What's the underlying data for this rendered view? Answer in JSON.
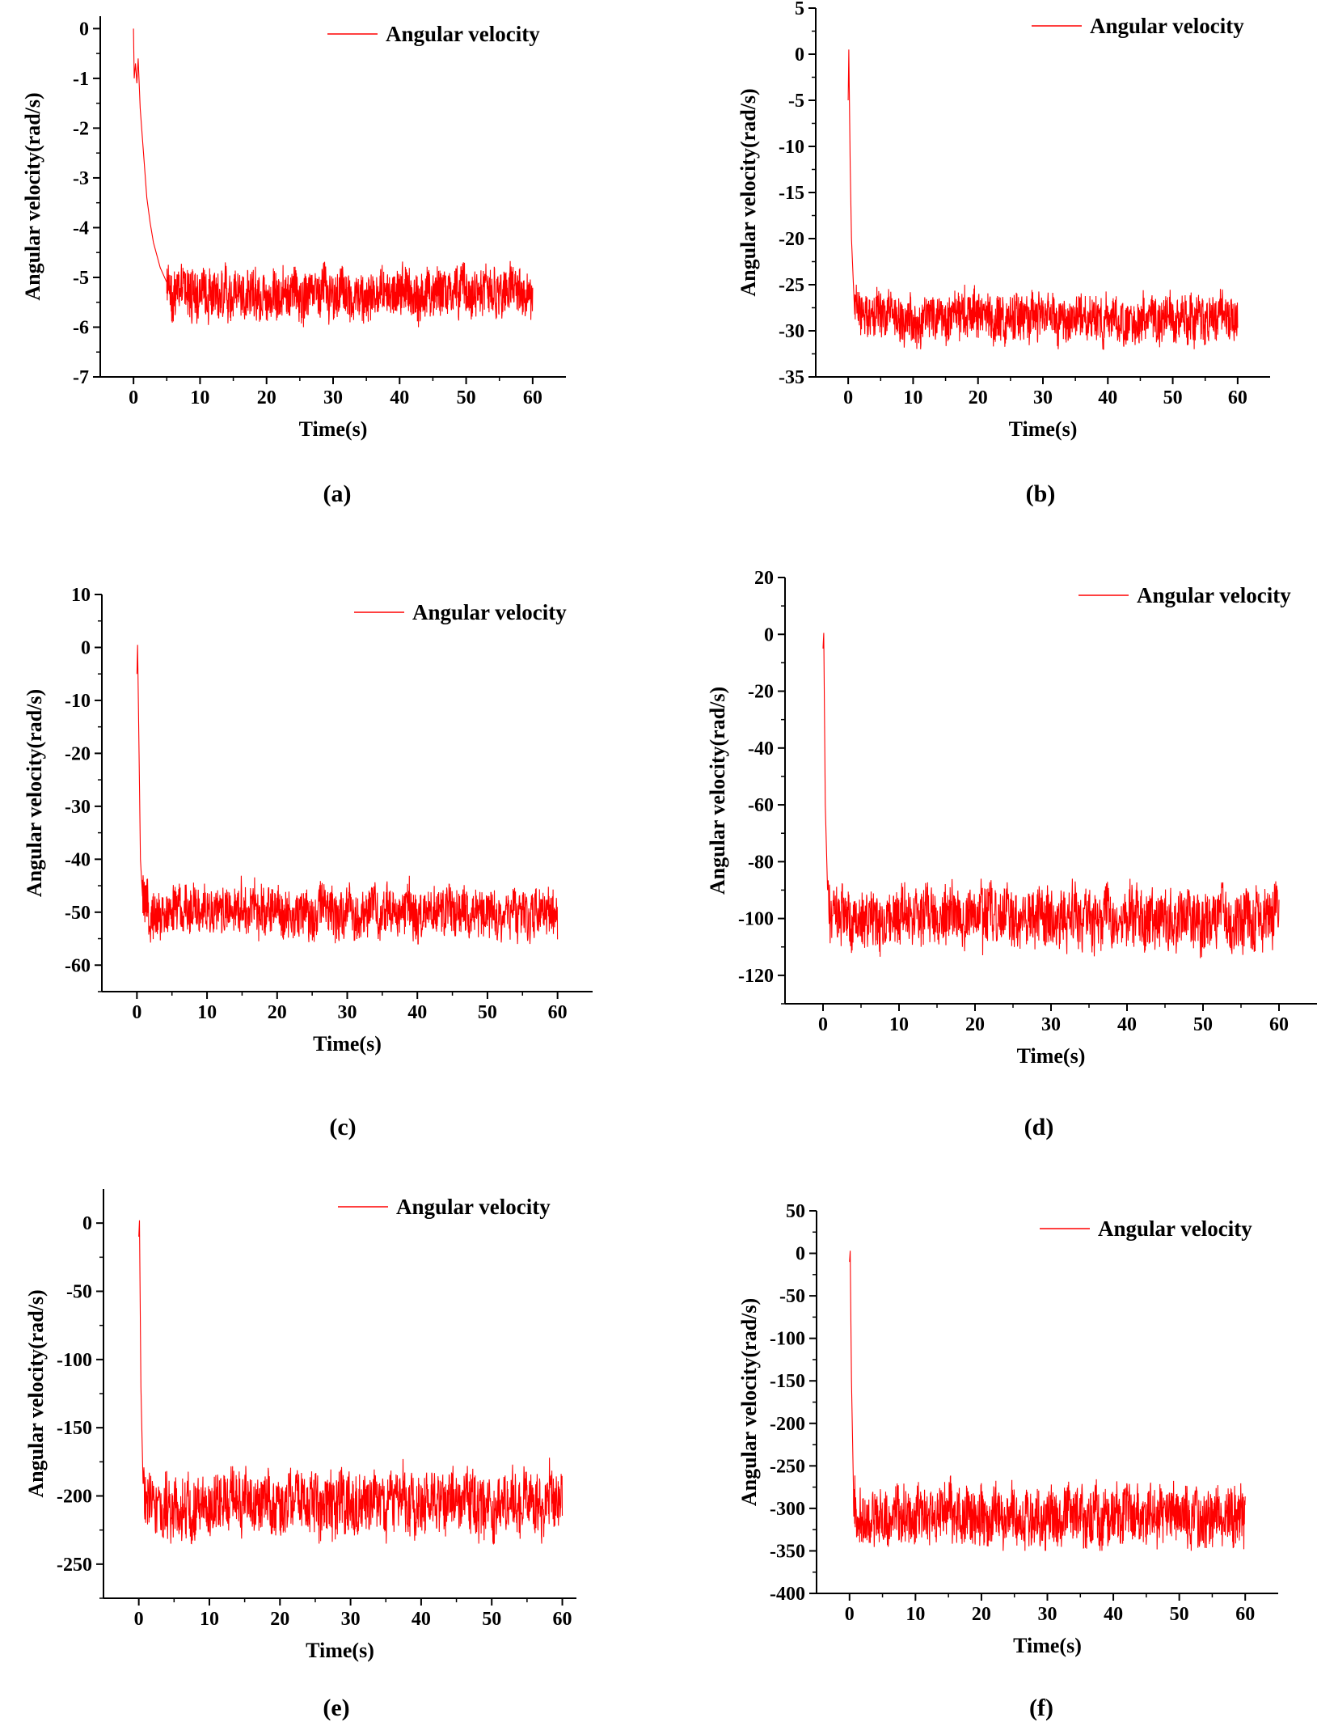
{
  "series_color": "#ff0000",
  "chart_data": [
    {
      "type": "line",
      "panel": "a",
      "caption": "(a)",
      "xlabel": "Time(s)",
      "ylabel": "Angular velocity(rad/s)",
      "legend": "Angular velocity",
      "legend_position": "top-right",
      "xlim": [
        -5,
        65
      ],
      "ylim": [
        -7,
        0.25
      ],
      "xticks": [
        0,
        10,
        20,
        30,
        40,
        50,
        60
      ],
      "yticks": [
        0,
        -1,
        -2,
        -3,
        -4,
        -5,
        -6,
        -7
      ],
      "xtick_labels": [
        "0",
        "10",
        "20",
        "30",
        "40",
        "50",
        "60"
      ],
      "ytick_labels": [
        "0",
        "-1",
        "-2",
        "-3",
        "-4",
        "-5",
        "-6",
        "-7"
      ],
      "series": [
        {
          "name": "Angular velocity",
          "x": [
            0,
            0.1,
            0.3,
            0.5,
            0.7,
            1.0,
            1.5,
            2.0,
            2.5,
            3.0,
            4.0,
            5.0,
            6.0,
            60
          ],
          "values": [
            0,
            -1.0,
            -0.7,
            -1.1,
            -0.6,
            -1.6,
            -2.5,
            -3.4,
            -3.9,
            -4.3,
            -4.8,
            -5.1,
            -5.3,
            -5.3
          ],
          "noise_band": {
            "t_start": 5,
            "t_end": 60,
            "low": -6.0,
            "high": -4.6
          }
        }
      ]
    },
    {
      "type": "line",
      "panel": "b",
      "caption": "(b)",
      "xlabel": "Time(s)",
      "ylabel": "Angular velocity(rad/s)",
      "legend": "Angular velocity",
      "legend_position": "top-right",
      "xlim": [
        -5,
        65
      ],
      "ylim": [
        -35,
        5
      ],
      "xticks": [
        0,
        10,
        20,
        30,
        40,
        50,
        60
      ],
      "yticks": [
        5,
        0,
        -5,
        -10,
        -15,
        -20,
        -25,
        -30,
        -35
      ],
      "xtick_labels": [
        "0",
        "10",
        "20",
        "30",
        "40",
        "50",
        "60"
      ],
      "ytick_labels": [
        "5",
        "0",
        "-5",
        "-10",
        "-15",
        "-20",
        "-25",
        "-30",
        "-35"
      ],
      "series": [
        {
          "name": "Angular velocity",
          "x": [
            0,
            0.1,
            0.3,
            0.5,
            0.8,
            1.2,
            2.0,
            60
          ],
          "values": [
            -5,
            0.5,
            -12,
            -20,
            -25,
            -27.5,
            -28.5,
            -28.5
          ],
          "noise_band": {
            "t_start": 1,
            "t_end": 60,
            "low": -32,
            "high": -25
          }
        }
      ]
    },
    {
      "type": "line",
      "panel": "c",
      "caption": "(c)",
      "xlabel": "Time(s)",
      "ylabel": "Angular velocity(rad/s)",
      "legend": "Angular velocity",
      "legend_position": "top-right",
      "xlim": [
        -5,
        65
      ],
      "ylim": [
        -65,
        10
      ],
      "xticks": [
        0,
        10,
        20,
        30,
        40,
        50,
        60
      ],
      "yticks": [
        10,
        0,
        -10,
        -20,
        -30,
        -40,
        -50,
        -60
      ],
      "xtick_labels": [
        "0",
        "10",
        "20",
        "30",
        "40",
        "50",
        "60"
      ],
      "ytick_labels": [
        "10",
        "0",
        "-10",
        "-20",
        "-30",
        "-40",
        "-50",
        "-60"
      ],
      "series": [
        {
          "name": "Angular velocity",
          "x": [
            0,
            0.1,
            0.3,
            0.5,
            0.8,
            1.2,
            60
          ],
          "values": [
            -5,
            0.5,
            -20,
            -40,
            -47,
            -50,
            -50
          ],
          "noise_band": {
            "t_start": 0.8,
            "t_end": 60,
            "low": -56,
            "high": -43
          }
        }
      ]
    },
    {
      "type": "line",
      "panel": "d",
      "caption": "(d)",
      "xlabel": "Time(s)",
      "ylabel": "Angular velocity(rad/s)",
      "legend": "Angular velocity",
      "legend_position": "top-right",
      "xlim": [
        -5,
        65
      ],
      "ylim": [
        -130,
        20
      ],
      "xticks": [
        0,
        10,
        20,
        30,
        40,
        50,
        60
      ],
      "yticks": [
        20,
        0,
        -20,
        -40,
        -60,
        -80,
        -100,
        -120
      ],
      "xtick_labels": [
        "0",
        "10",
        "20",
        "30",
        "40",
        "50",
        "60"
      ],
      "ytick_labels": [
        "20",
        "0",
        "-20",
        "-40",
        "-60",
        "-80",
        "-100",
        "-120"
      ],
      "series": [
        {
          "name": "Angular velocity",
          "x": [
            0,
            0.1,
            0.3,
            0.6,
            1.0,
            60
          ],
          "values": [
            -5,
            0.5,
            -60,
            -90,
            -100,
            -100
          ],
          "noise_band": {
            "t_start": 0.6,
            "t_end": 60,
            "low": -115,
            "high": -86
          }
        }
      ]
    },
    {
      "type": "line",
      "panel": "e",
      "caption": "(e)",
      "xlabel": "Time(s)",
      "ylabel": "Angular velocity(rad/s)",
      "legend": "Angular velocity",
      "legend_position": "top-right",
      "xlim": [
        -5,
        62
      ],
      "ylim": [
        -275,
        25
      ],
      "xticks": [
        0,
        10,
        20,
        30,
        40,
        50,
        60
      ],
      "yticks": [
        0,
        -50,
        -100,
        -150,
        -200,
        -250
      ],
      "xtick_labels": [
        "0",
        "10",
        "20",
        "30",
        "40",
        "50",
        "60"
      ],
      "ytick_labels": [
        "0",
        "-50",
        "-100",
        "-150",
        "-200",
        "-250"
      ],
      "series": [
        {
          "name": "Angular velocity",
          "x": [
            0,
            0.1,
            0.3,
            0.6,
            1.0,
            60
          ],
          "values": [
            -10,
            2,
            -120,
            -190,
            -205,
            -205
          ],
          "noise_band": {
            "t_start": 0.6,
            "t_end": 60,
            "low": -235,
            "high": -172
          }
        }
      ]
    },
    {
      "type": "line",
      "panel": "f",
      "caption": "(f)",
      "xlabel": "Time(s)",
      "ylabel": "Angular velocity(rad/s)",
      "legend": "Angular velocity",
      "legend_position": "top-right",
      "xlim": [
        -5,
        65
      ],
      "ylim": [
        -400,
        50
      ],
      "xticks": [
        0,
        10,
        20,
        30,
        40,
        50,
        60
      ],
      "yticks": [
        50,
        0,
        -50,
        -100,
        -150,
        -200,
        -250,
        -300,
        -350,
        -400
      ],
      "xtick_labels": [
        "0",
        "10",
        "20",
        "30",
        "40",
        "50",
        "60"
      ],
      "ytick_labels": [
        "50",
        "0",
        "-50",
        "-100",
        "-150",
        "-200",
        "-250",
        "-300",
        "-350",
        "-400"
      ],
      "series": [
        {
          "name": "Angular velocity",
          "x": [
            0,
            0.1,
            0.3,
            0.6,
            1.0,
            60
          ],
          "values": [
            -10,
            3,
            -150,
            -280,
            -310,
            -310
          ],
          "noise_band": {
            "t_start": 0.6,
            "t_end": 60,
            "low": -350,
            "high": -255
          }
        }
      ]
    }
  ]
}
